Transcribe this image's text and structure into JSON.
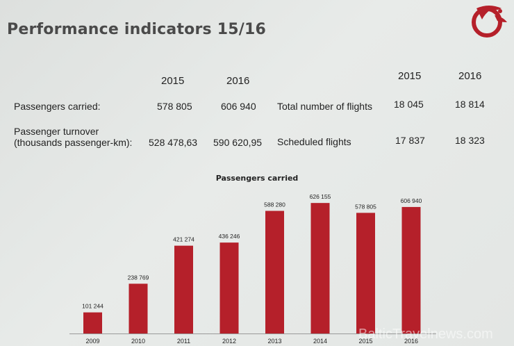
{
  "slide": {
    "title": "Performance indicators 15/16",
    "watermark": "BalticTravelnews.com"
  },
  "table_left": {
    "year_2015": "2015",
    "year_2016": "2016",
    "rows": [
      {
        "label": "Passengers carried:",
        "v2015": "578 805",
        "v2016": "606 940"
      },
      {
        "label_line1": "Passenger turnover",
        "label_line2": "(thousands passenger-km):",
        "v2015": "528 478,63",
        "v2016": "590 620,95"
      }
    ]
  },
  "table_right": {
    "year_2015": "2015",
    "year_2016": "2016",
    "rows": [
      {
        "label": "Total number of flights",
        "v2015": "18 045",
        "v2016": "18 814"
      },
      {
        "label": "Scheduled flights",
        "v2015": "17 837",
        "v2016": "18 323"
      }
    ]
  },
  "colors": {
    "bar": "#b5202a",
    "axis": "#999999"
  },
  "chart_data": {
    "type": "bar",
    "title": "Passengers carried",
    "categories": [
      "2009",
      "2010",
      "2011",
      "2012",
      "2013",
      "2014",
      "2015",
      "2016"
    ],
    "values": [
      101244,
      238769,
      421274,
      436246,
      588280,
      626155,
      578805,
      606940
    ],
    "labels": [
      "101 244",
      "238 769",
      "421 274",
      "436 246",
      "588 280",
      "626 155",
      "578 805",
      "606 940"
    ],
    "ylim": [
      0,
      700000
    ],
    "grid": false,
    "legend": "none"
  }
}
